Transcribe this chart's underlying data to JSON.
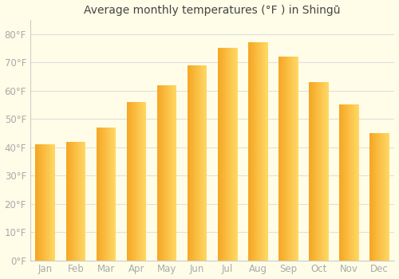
{
  "title": "Average monthly temperatures (°F ) in Shingū",
  "months": [
    "Jan",
    "Feb",
    "Mar",
    "Apr",
    "May",
    "Jun",
    "Jul",
    "Aug",
    "Sep",
    "Oct",
    "Nov",
    "Dec"
  ],
  "values": [
    41,
    42,
    47,
    56,
    62,
    69,
    75,
    77,
    72,
    63,
    55,
    45
  ],
  "bar_color_left": "#F5A623",
  "bar_color_right": "#FFD966",
  "background_color": "#FFFDE7",
  "grid_color": "#e0e0e0",
  "ylim": [
    0,
    85
  ],
  "yticks": [
    0,
    10,
    20,
    30,
    40,
    50,
    60,
    70,
    80
  ],
  "ytick_labels": [
    "0°F",
    "10°F",
    "20°F",
    "30°F",
    "40°F",
    "50°F",
    "60°F",
    "70°F",
    "80°F"
  ],
  "title_fontsize": 10,
  "tick_fontsize": 8.5,
  "tick_color": "#aaaaaa",
  "spine_color": "#cccccc"
}
